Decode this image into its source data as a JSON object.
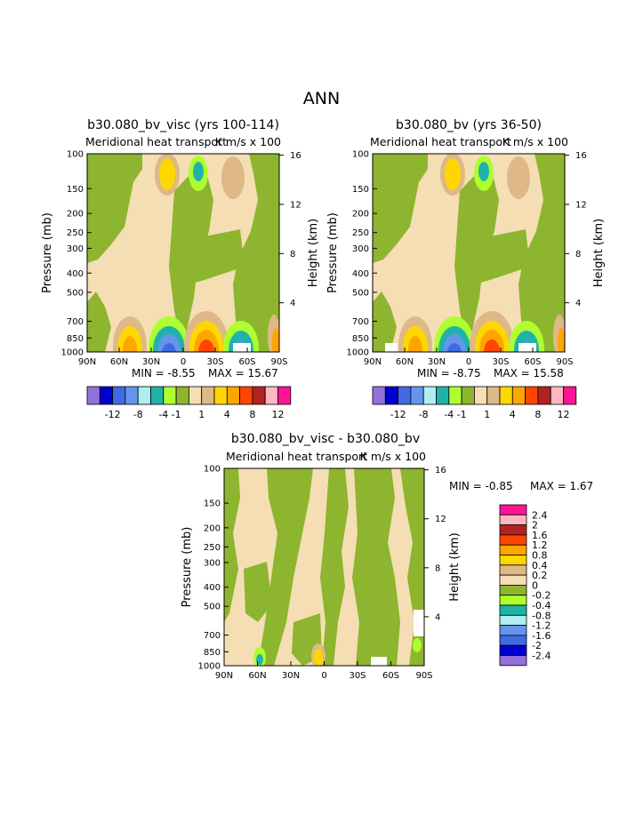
{
  "page": {
    "title": "ANN"
  },
  "palettes": {
    "main": [
      "#9370DB",
      "#0000CD",
      "#4169E1",
      "#6495ED",
      "#AEEEEE",
      "#20B2AA",
      "#ADFF2F",
      "#8DB52F",
      "#F5DEB3",
      "#DEB887",
      "#FFD700",
      "#FFA500",
      "#FF4500",
      "#B22222",
      "#FFB6C1",
      "#FF1493"
    ],
    "diff": [
      "#9370DB",
      "#0000CD",
      "#4169E1",
      "#6495ED",
      "#AEEEEE",
      "#20B2AA",
      "#ADFF2F",
      "#8DB52F",
      "#F5DEB3",
      "#DEB887",
      "#FFD700",
      "#FFA500",
      "#FF4500",
      "#B22222",
      "#FFB6C1",
      "#FF1493"
    ]
  },
  "chart_data": [
    {
      "type": "heatmap",
      "id": "panel1",
      "title": "b30.080_bv_visc (yrs 100-114)",
      "subtitle_left": "Meridional heat transport",
      "subtitle_right": "K m/s x 100",
      "ylabel": "Pressure (mb)",
      "ylabel_right": "Height (km)",
      "x_ticks": [
        "90N",
        "60N",
        "30N",
        "0",
        "30S",
        "60S",
        "90S"
      ],
      "y_ticks": [
        "100",
        "150",
        "200",
        "250",
        "300",
        "400",
        "500",
        "700",
        "850",
        "1000"
      ],
      "y_ticks_right": [
        "16",
        "12",
        "8",
        "4"
      ],
      "min_label": "MIN =   -8.55",
      "max_label": "MAX =   15.67",
      "min": -8.55,
      "max": 15.67,
      "colorbar_labels": [
        "-12",
        "-8",
        "-4",
        "-1",
        "1",
        "4",
        "8",
        "12"
      ]
    },
    {
      "type": "heatmap",
      "id": "panel2",
      "title": "b30.080_bv (yrs 36-50)",
      "subtitle_left": "Meridional heat transport",
      "subtitle_right": "K m/s x 100",
      "ylabel": "Pressure (mb)",
      "ylabel_right": "Height (km)",
      "x_ticks": [
        "90N",
        "60N",
        "30N",
        "0",
        "30S",
        "60S",
        "90S"
      ],
      "y_ticks": [
        "100",
        "150",
        "200",
        "250",
        "300",
        "400",
        "500",
        "700",
        "850",
        "1000"
      ],
      "y_ticks_right": [
        "16",
        "12",
        "8",
        "4"
      ],
      "min_label": "MIN =   -8.75",
      "max_label": "MAX =   15.58",
      "min": -8.75,
      "max": 15.58,
      "colorbar_labels": [
        "-12",
        "-8",
        "-4",
        "-1",
        "1",
        "4",
        "8",
        "12"
      ]
    },
    {
      "type": "heatmap",
      "id": "panel3",
      "title": "b30.080_bv_visc - b30.080_bv",
      "subtitle_left": "Meridional heat transport",
      "subtitle_right": "K m/s x 100",
      "ylabel": "Pressure (mb)",
      "ylabel_right": "Height (km)",
      "x_ticks": [
        "90N",
        "60N",
        "30N",
        "0",
        "30S",
        "60S",
        "90S"
      ],
      "y_ticks": [
        "100",
        "150",
        "200",
        "250",
        "300",
        "400",
        "500",
        "700",
        "850",
        "1000"
      ],
      "y_ticks_right": [
        "16",
        "12",
        "8",
        "4"
      ],
      "min_label": "MIN =   -0.85",
      "max_label": "MAX =    1.67",
      "min": -0.85,
      "max": 1.67,
      "colorbar_labels": [
        "2.4",
        "2",
        "1.6",
        "1.2",
        "0.8",
        "0.4",
        "0.2",
        "0",
        "-0.2",
        "-0.4",
        "-0.8",
        "-1.2",
        "-1.6",
        "-2",
        "-2.4"
      ]
    }
  ]
}
